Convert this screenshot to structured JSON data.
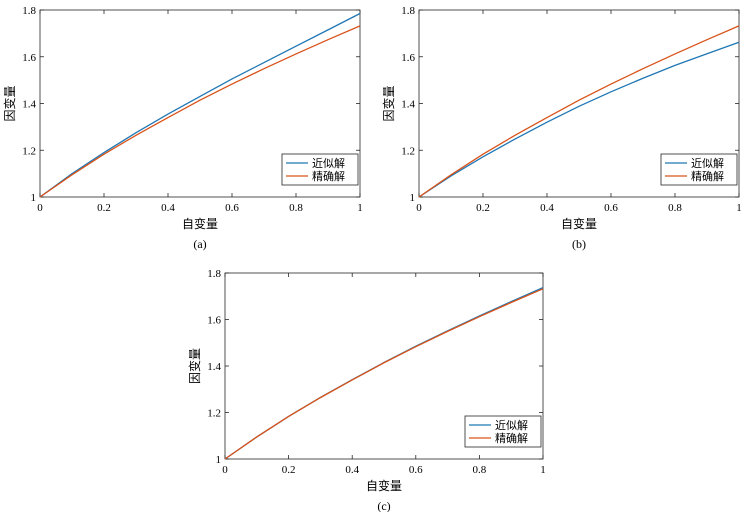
{
  "chart_data": [
    {
      "type": "line",
      "caption": "(a)",
      "xlabel": "自变量",
      "ylabel": "因变量",
      "xlim": [
        0,
        1
      ],
      "ylim": [
        1,
        1.8
      ],
      "xticks": [
        "0",
        "0.2",
        "0.4",
        "0.6",
        "0.8",
        "1"
      ],
      "yticks": [
        "1",
        "1.2",
        "1.4",
        "1.6",
        "1.8"
      ],
      "grid": false,
      "legend_position": "bottom-right",
      "x": [
        0,
        0.1,
        0.2,
        0.3,
        0.4,
        0.5,
        0.6,
        0.7,
        0.8,
        0.9,
        1.0
      ],
      "series": [
        {
          "name": "近似解",
          "color": "#1f77b4",
          "values": [
            1.0,
            1.1,
            1.19,
            1.275,
            1.355,
            1.43,
            1.505,
            1.575,
            1.645,
            1.715,
            1.785
          ]
        },
        {
          "name": "精确解",
          "color": "#d95319",
          "values": [
            1.0,
            1.095,
            1.183,
            1.264,
            1.34,
            1.414,
            1.483,
            1.549,
            1.612,
            1.673,
            1.732
          ]
        }
      ]
    },
    {
      "type": "line",
      "caption": "(b)",
      "xlabel": "自变量",
      "ylabel": "因变量",
      "xlim": [
        0,
        1
      ],
      "ylim": [
        1,
        1.8
      ],
      "xticks": [
        "0",
        "0.2",
        "0.4",
        "0.6",
        "0.8",
        "1"
      ],
      "yticks": [
        "1",
        "1.2",
        "1.4",
        "1.6",
        "1.8"
      ],
      "grid": false,
      "legend_position": "bottom-right",
      "x": [
        0,
        0.1,
        0.2,
        0.3,
        0.4,
        0.5,
        0.6,
        0.7,
        0.8,
        0.9,
        1.0
      ],
      "series": [
        {
          "name": "近似解",
          "color": "#1f77b4",
          "values": [
            1.0,
            1.09,
            1.172,
            1.248,
            1.32,
            1.388,
            1.45,
            1.508,
            1.563,
            1.613,
            1.662
          ]
        },
        {
          "name": "精确解",
          "color": "#d95319",
          "values": [
            1.0,
            1.095,
            1.183,
            1.264,
            1.34,
            1.414,
            1.483,
            1.549,
            1.612,
            1.673,
            1.732
          ]
        }
      ]
    },
    {
      "type": "line",
      "caption": "(c)",
      "xlabel": "自变量",
      "ylabel": "因变量",
      "xlim": [
        0,
        1
      ],
      "ylim": [
        1,
        1.8
      ],
      "xticks": [
        "0",
        "0.2",
        "0.4",
        "0.6",
        "0.8",
        "1"
      ],
      "yticks": [
        "1",
        "1.2",
        "1.4",
        "1.6",
        "1.8"
      ],
      "grid": false,
      "legend_position": "bottom-right",
      "x": [
        0,
        0.1,
        0.2,
        0.3,
        0.4,
        0.5,
        0.6,
        0.7,
        0.8,
        0.9,
        1.0
      ],
      "series": [
        {
          "name": "近似解",
          "color": "#1f77b4",
          "values": [
            1.0,
            1.095,
            1.183,
            1.265,
            1.341,
            1.415,
            1.485,
            1.551,
            1.615,
            1.677,
            1.737
          ]
        },
        {
          "name": "精确解",
          "color": "#d95319",
          "values": [
            1.0,
            1.095,
            1.183,
            1.264,
            1.34,
            1.414,
            1.483,
            1.549,
            1.612,
            1.673,
            1.732
          ]
        }
      ]
    }
  ]
}
